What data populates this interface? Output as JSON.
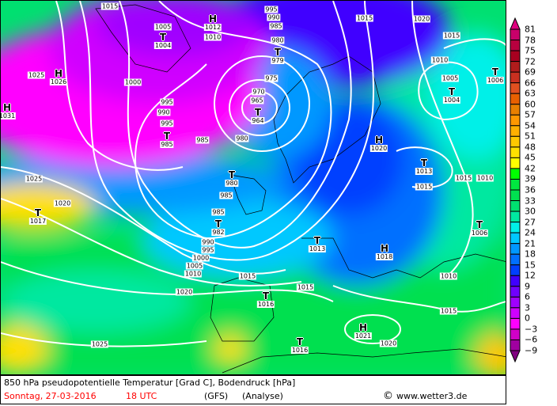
{
  "map": {
    "centers": [
      {
        "sym": "H",
        "val": "1012"
      },
      {
        "sym": "",
        "val": "1010"
      },
      {
        "sym": "T",
        "val": "1004"
      },
      {
        "sym": "H",
        "val": "1026"
      },
      {
        "sym": "H",
        "val": "1031"
      },
      {
        "sym": "T",
        "val": "985"
      },
      {
        "sym": "T",
        "val": "964"
      },
      {
        "sym": "T",
        "val": "979"
      },
      {
        "sym": "T",
        "val": "980"
      },
      {
        "sym": "T",
        "val": "982"
      },
      {
        "sym": "T",
        "val": "1017"
      },
      {
        "sym": "H",
        "val": "1020"
      },
      {
        "sym": "T",
        "val": "1013"
      },
      {
        "sym": "T",
        "val": "1004"
      },
      {
        "sym": "T",
        "val": "1006"
      },
      {
        "sym": "T",
        "val": "1006"
      },
      {
        "sym": "H",
        "val": "1018"
      },
      {
        "sym": "T",
        "val": "1013"
      },
      {
        "sym": "T",
        "val": "1016"
      },
      {
        "sym": "T",
        "val": "1016"
      },
      {
        "sym": "H",
        "val": "1021"
      }
    ],
    "isobar_labels": [
      "1015",
      "1005",
      "995",
      "990",
      "985",
      "980",
      "1015",
      "1020",
      "1015",
      "1025",
      "1000",
      "995",
      "990",
      "995",
      "985",
      "975",
      "970",
      "965",
      "980",
      "1010",
      "1005",
      "1025",
      "1020",
      "985",
      "985",
      "990",
      "995",
      "1000",
      "1005",
      "1010",
      "1015",
      "1015",
      "1010",
      "1015",
      "1015",
      "1020",
      "1025",
      "1020",
      "1015",
      "1010"
    ]
  },
  "legend": {
    "labels": [
      "81",
      "78",
      "75",
      "72",
      "69",
      "66",
      "63",
      "60",
      "57",
      "54",
      "51",
      "48",
      "45",
      "42",
      "39",
      "36",
      "33",
      "30",
      "27",
      "24",
      "21",
      "18",
      "15",
      "12",
      "9",
      "6",
      "3",
      "0",
      "−3",
      "−6",
      "−9"
    ],
    "top_color": "#e0007f",
    "colors": [
      "#c8006a",
      "#b8003f",
      "#a80020",
      "#b01c1c",
      "#c83020",
      "#e05020",
      "#e86000",
      "#e88000",
      "#ff9800",
      "#ffb000",
      "#ffc800",
      "#ffe000",
      "#ffff00",
      "#00ff00",
      "#00e840",
      "#00e050",
      "#00e070",
      "#00e8a0",
      "#00f0e8",
      "#00c8ff",
      "#0098ff",
      "#0070ff",
      "#0040ff",
      "#4000ff",
      "#7000ff",
      "#a000ff",
      "#d000ff",
      "#ff00ff",
      "#d000c8",
      "#a000a0"
    ],
    "bottom_color": "#800080"
  },
  "footer": {
    "title": "850 hPa pseudopotentielle Temperatur [Grad C], Bodendruck [hPa]",
    "date": "Sonntag, 27-03-2016",
    "time": "18 UTC",
    "model": "(GFS)",
    "run": "(Analyse)",
    "copyright": "©",
    "site": "www.wetter3.de",
    "date_color": "#ff0000"
  }
}
